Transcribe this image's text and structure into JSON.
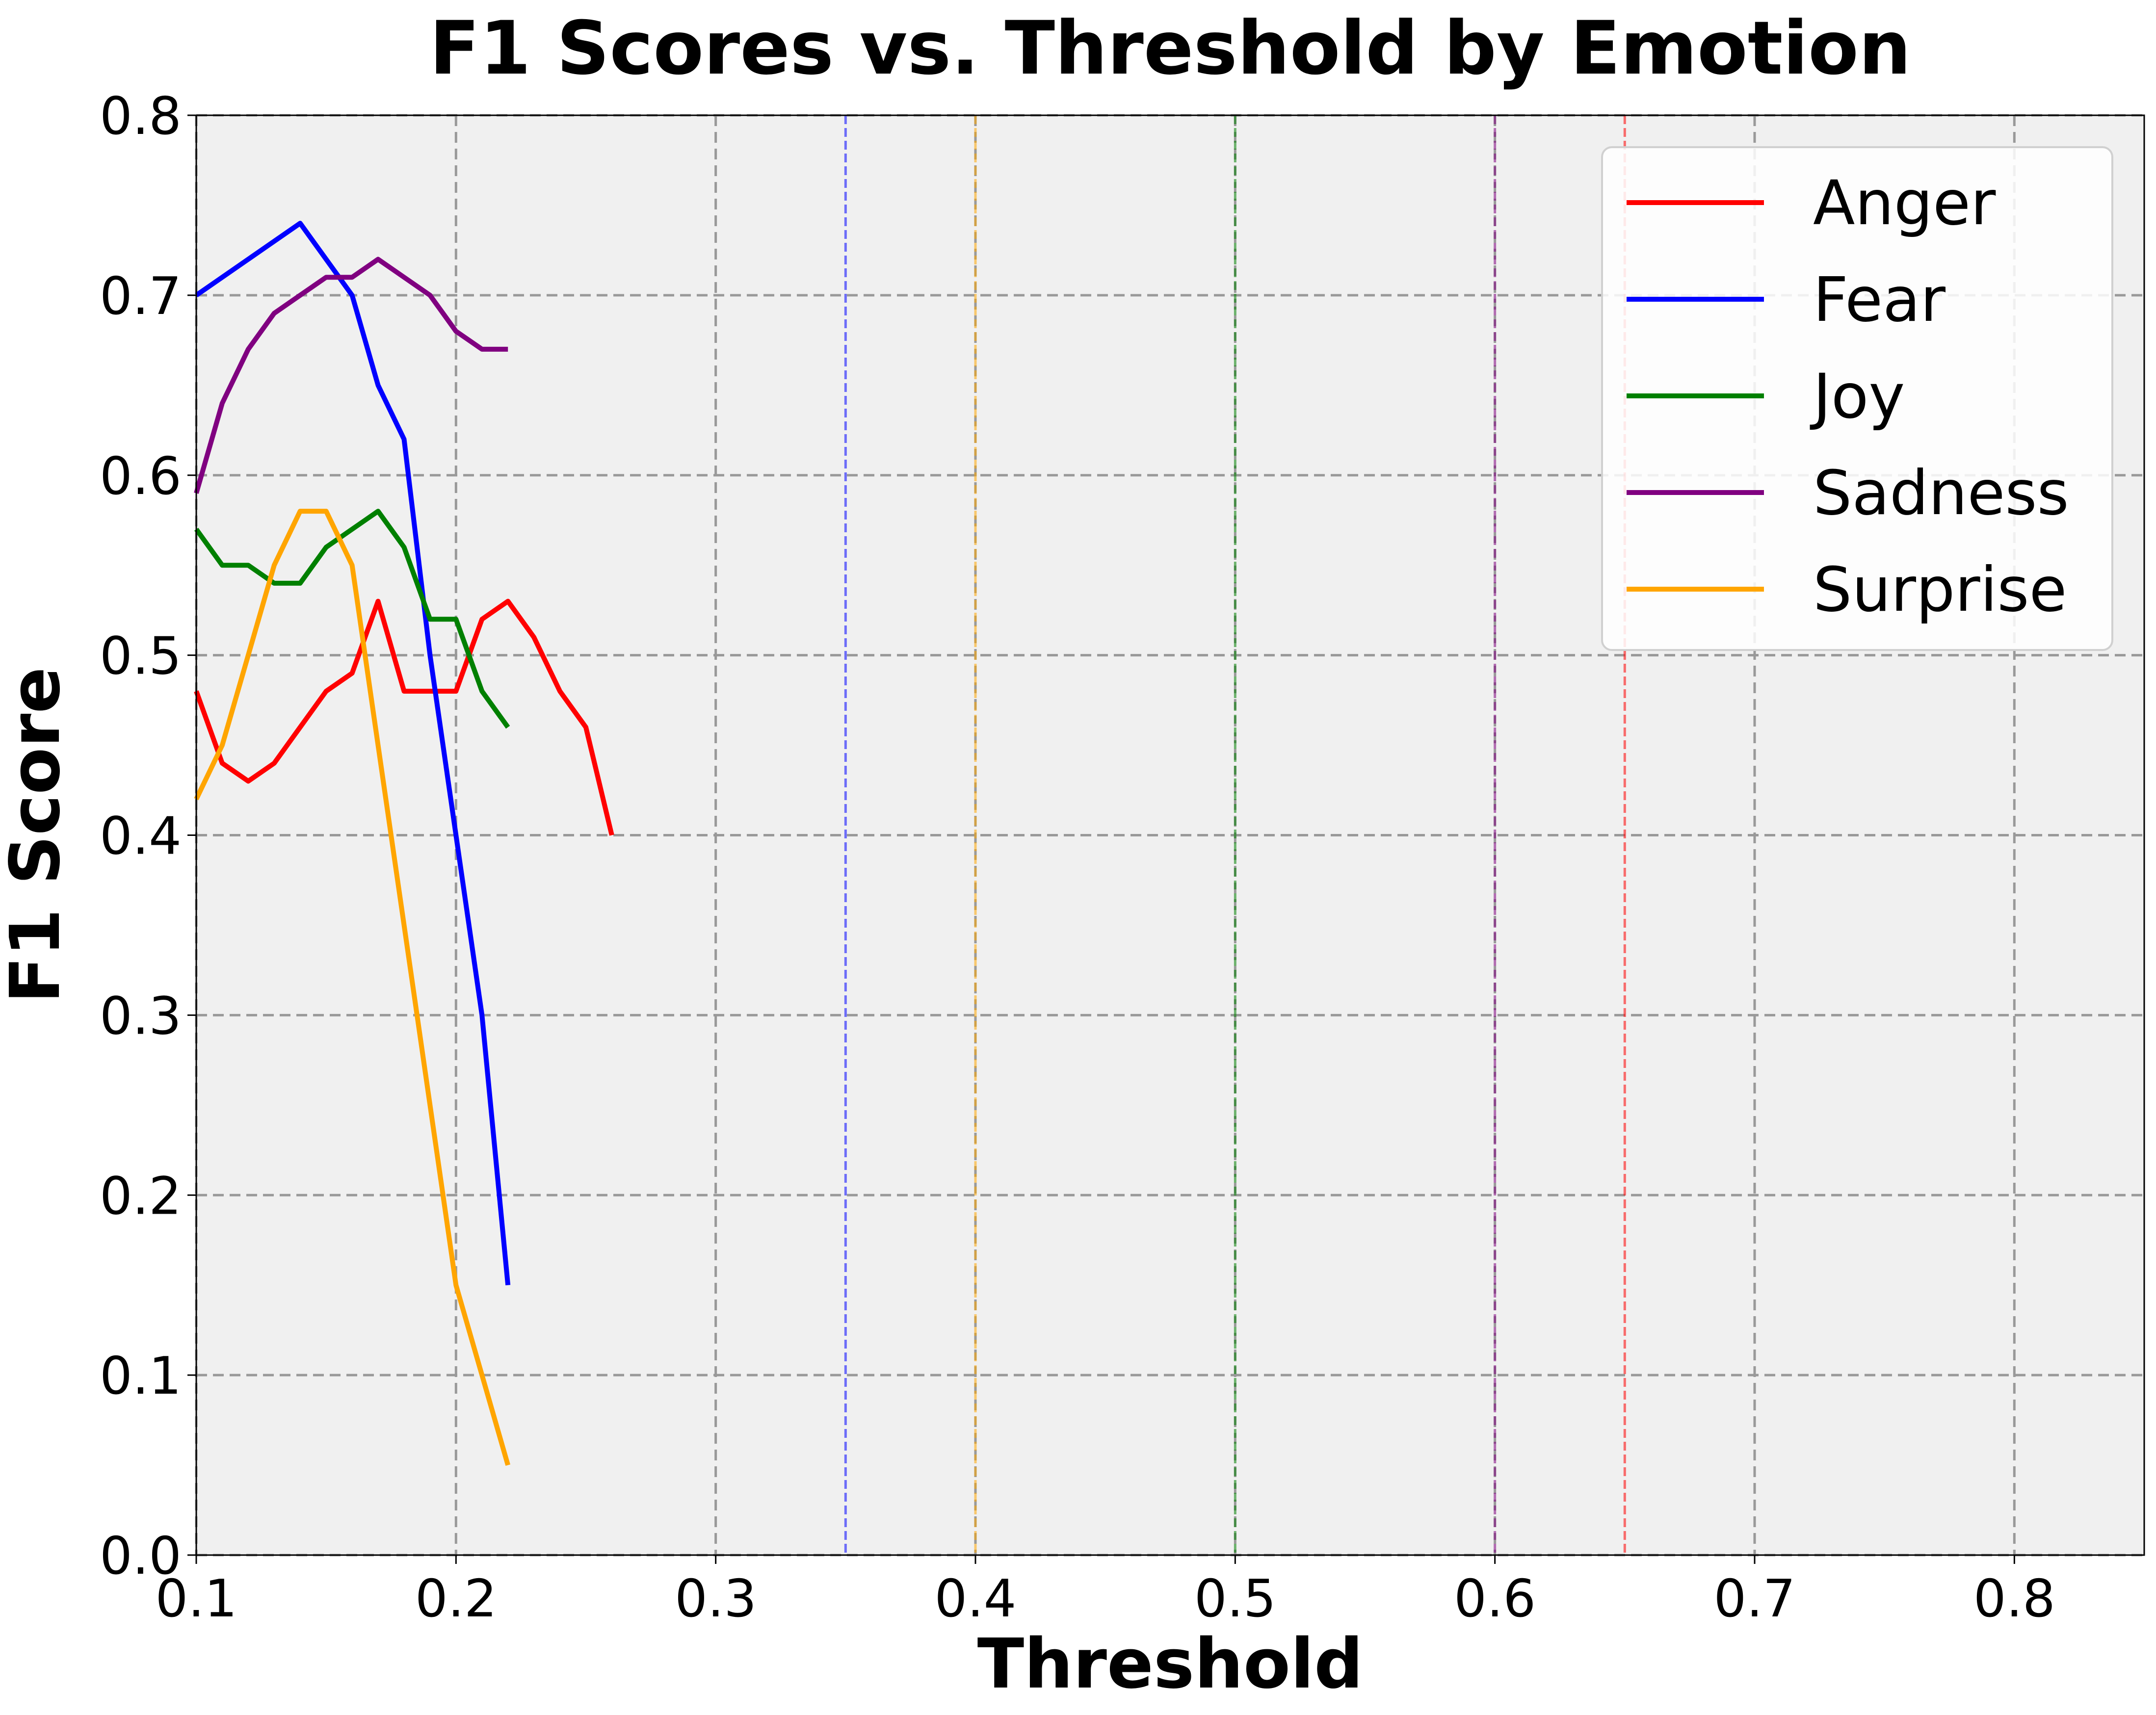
{
  "chart_data": {
    "type": "line",
    "title": "F1 Scores vs. Threshold by Emotion",
    "xlabel": "Threshold",
    "ylabel": "F1 Score",
    "xlim": [
      0.1,
      0.85
    ],
    "ylim": [
      0.0,
      0.8
    ],
    "xticks": [
      "0.1",
      "0.2",
      "0.3",
      "0.4",
      "0.5",
      "0.6",
      "0.7",
      "0.8"
    ],
    "yticks": [
      "0.0",
      "0.1",
      "0.2",
      "0.3",
      "0.4",
      "0.5",
      "0.6",
      "0.7",
      "0.8"
    ],
    "grid": true,
    "legend_position": "top-right",
    "background": "#f0f0f0",
    "series": [
      {
        "name": "Anger",
        "color": "#ff0000",
        "x": [
          0.1,
          0.11,
          0.12,
          0.13,
          0.14,
          0.15,
          0.16,
          0.17,
          0.18,
          0.19,
          0.2,
          0.21,
          0.22,
          0.23,
          0.24,
          0.25,
          0.26
        ],
        "y": [
          0.48,
          0.44,
          0.43,
          0.44,
          0.46,
          0.48,
          0.49,
          0.53,
          0.48,
          0.48,
          0.48,
          0.52,
          0.53,
          0.51,
          0.48,
          0.46,
          0.4
        ]
      },
      {
        "name": "Fear",
        "color": "#0000ff",
        "x": [
          0.1,
          0.14,
          0.16,
          0.17,
          0.18,
          0.19,
          0.2,
          0.21,
          0.22
        ],
        "y": [
          0.7,
          0.74,
          0.7,
          0.65,
          0.62,
          0.5,
          0.4,
          0.3,
          0.15
        ]
      },
      {
        "name": "Joy",
        "color": "#008000",
        "x": [
          0.1,
          0.11,
          0.12,
          0.13,
          0.14,
          0.15,
          0.16,
          0.17,
          0.18,
          0.19,
          0.2,
          0.21,
          0.22
        ],
        "y": [
          0.57,
          0.55,
          0.55,
          0.54,
          0.54,
          0.56,
          0.57,
          0.58,
          0.56,
          0.52,
          0.52,
          0.48,
          0.46
        ]
      },
      {
        "name": "Sadness",
        "color": "#800080",
        "x": [
          0.1,
          0.11,
          0.12,
          0.13,
          0.14,
          0.15,
          0.16,
          0.17,
          0.18,
          0.19,
          0.2,
          0.21,
          0.22
        ],
        "y": [
          0.59,
          0.64,
          0.67,
          0.69,
          0.7,
          0.71,
          0.71,
          0.72,
          0.71,
          0.7,
          0.68,
          0.67,
          0.67
        ]
      },
      {
        "name": "Surprise",
        "color": "#ffa500",
        "x": [
          0.1,
          0.11,
          0.12,
          0.13,
          0.14,
          0.15,
          0.16,
          0.17,
          0.18,
          0.19,
          0.2,
          0.21,
          0.22
        ],
        "y": [
          0.42,
          0.45,
          0.5,
          0.55,
          0.58,
          0.58,
          0.55,
          0.45,
          0.35,
          0.25,
          0.15,
          0.1,
          0.05
        ]
      }
    ],
    "vertical_lines": [
      {
        "x": 0.35,
        "color": "#0000ff"
      },
      {
        "x": 0.4,
        "color": "#ffa500"
      },
      {
        "x": 0.5,
        "color": "#008000"
      },
      {
        "x": 0.6,
        "color": "#800080"
      },
      {
        "x": 0.65,
        "color": "#ff0000"
      }
    ]
  }
}
